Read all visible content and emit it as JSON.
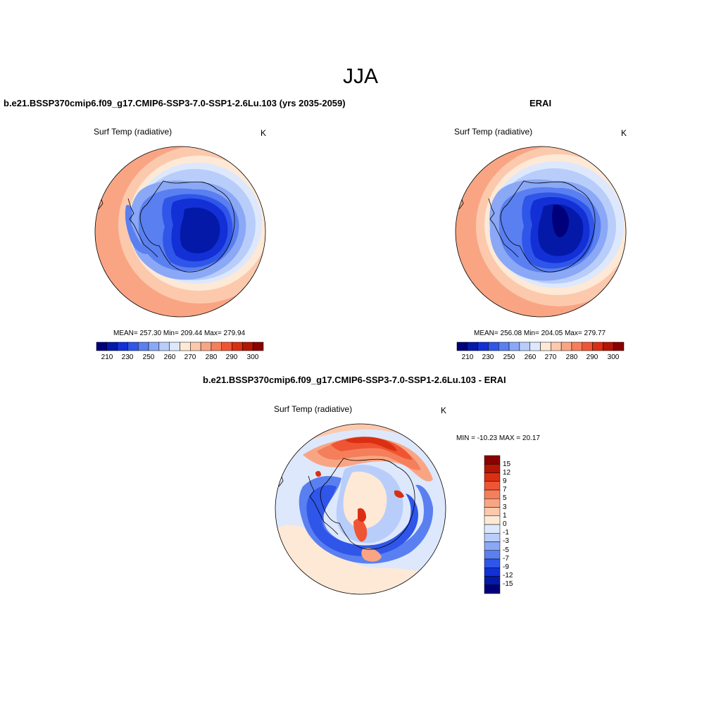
{
  "figure": {
    "title": "JJA"
  },
  "panels": [
    {
      "title": "b.e21.BSSP370cmip6.f09_g17.CMIP6-SSP3-7.0-SSP1-2.6Lu.103 (yrs 2035-2059)",
      "variable": "Surf Temp (radiative)",
      "units": "K",
      "stats": "MEAN= 257.30  Min= 209.44  Max= 279.94",
      "mean": 257.3,
      "min": 209.44,
      "max": 279.94
    },
    {
      "title": "ERAI",
      "variable": "Surf Temp (radiative)",
      "units": "K",
      "stats": "MEAN= 256.08  Min= 204.05  Max= 279.77",
      "mean": 256.08,
      "min": 204.05,
      "max": 279.77
    },
    {
      "title": "b.e21.BSSP370cmip6.f09_g17.CMIP6-SSP3-7.0-SSP1-2.6Lu.103 - ERAI",
      "variable": "Surf Temp (radiative)",
      "units": "K",
      "stats": "MIN = -10.23 MAX =  20.17",
      "min": -10.23,
      "max": 20.17
    }
  ],
  "colorbar_abs": {
    "labels": [
      "210",
      "230",
      "250",
      "260",
      "270",
      "280",
      "290",
      "300"
    ],
    "colors": [
      "#00007a",
      "#0419a8",
      "#1230d6",
      "#2f56e8",
      "#5a7ff0",
      "#8aa8f5",
      "#b8cdfa",
      "#dde8fd",
      "#fde9d6",
      "#fcc9ad",
      "#f9a584",
      "#f57f5b",
      "#ef5535",
      "#db2f12",
      "#b51505",
      "#880000"
    ]
  },
  "colorbar_diff": {
    "labels": [
      "15",
      "12",
      "9",
      "7",
      "5",
      "3",
      "1",
      "0",
      "-1",
      "-3",
      "-5",
      "-7",
      "-9",
      "-12",
      "-15"
    ],
    "colors": [
      "#880000",
      "#b51505",
      "#db2f12",
      "#ef5535",
      "#f57f5b",
      "#f9a584",
      "#fcc9ad",
      "#fde9d6",
      "#dde8fd",
      "#b8cdfa",
      "#8aa8f5",
      "#5a7ff0",
      "#2f56e8",
      "#1230d6",
      "#0419a8",
      "#00007a"
    ]
  }
}
